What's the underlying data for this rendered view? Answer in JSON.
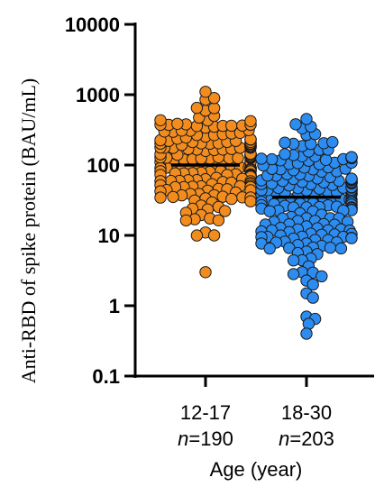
{
  "chart_data": {
    "type": "scatter",
    "title": "",
    "xlabel": "Age (year)",
    "ylabel": "Anti-RBD of spike protein (BAU/mL)",
    "yscale": "log",
    "ylim": [
      0.1,
      10000
    ],
    "yticks": [
      "0.1",
      "1",
      "10",
      "100",
      "1000",
      "10000"
    ],
    "grid": false,
    "categories": [
      {
        "label": "12-17",
        "n_prefix": "n",
        "n_value": "=190",
        "color": "#F28C1E",
        "median": 100
      },
      {
        "label": "18-30",
        "n_prefix": "n",
        "n_value": "=203",
        "color": "#2D8CF0",
        "median": 35
      }
    ],
    "series": [
      {
        "category": "12-17",
        "distribution": {
          "count": 190,
          "median": 100,
          "q1": 55,
          "q3": 180,
          "min": 3,
          "max": 1100
        },
        "notable_points": [
          3,
          10,
          11,
          850,
          1100,
          650,
          500
        ]
      },
      {
        "category": "18-30",
        "distribution": {
          "count": 203,
          "median": 35,
          "q1": 16,
          "q3": 80,
          "min": 0.4,
          "max": 450
        },
        "notable_points": [
          0.4,
          0.65,
          0.7,
          1.3,
          1.5,
          2,
          3,
          380,
          450
        ]
      }
    ]
  }
}
